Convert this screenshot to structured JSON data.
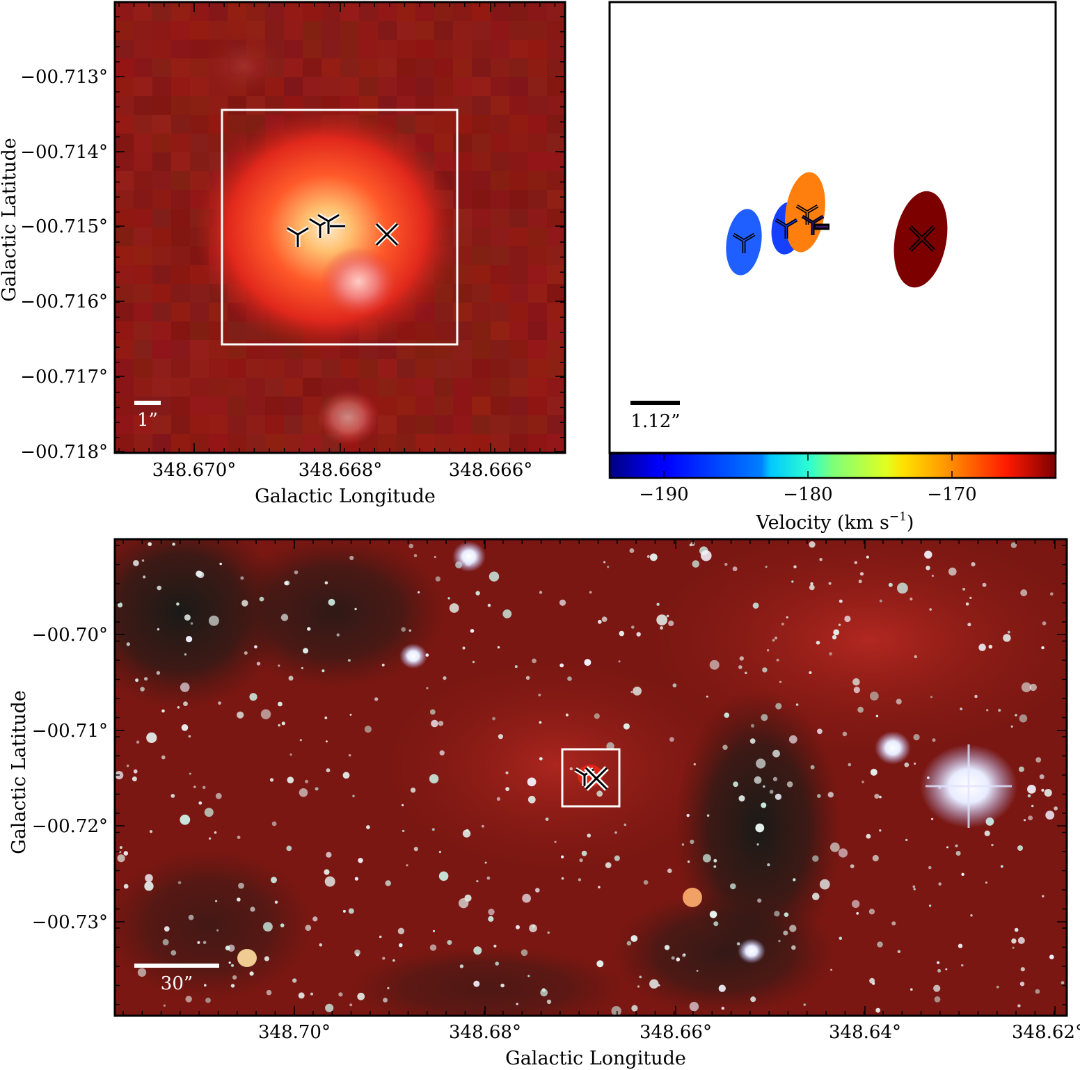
{
  "top_left_panel": {
    "y_title": "Galactic Latitude",
    "x_title": "Galactic Longitude",
    "y_ticks": [
      "−00.713°",
      "−00.714°",
      "−00.715°",
      "−00.716°",
      "−00.717°",
      "−00.718°"
    ],
    "x_ticks": [
      "348.670°",
      "348.668°",
      "348.666°"
    ],
    "scale_bar_label": "1”",
    "colors": {
      "background": "#8a1a14",
      "box": "#ffffff",
      "core": "#ffe0b0"
    }
  },
  "top_right_panel": {
    "scale_bar_label": "1.12”",
    "colorbar": {
      "title": "Velocity (km s",
      "title_exponent": "−1",
      "title_close": ")",
      "ticks": [
        "−190",
        "−180",
        "−170"
      ],
      "range": [
        -193.5,
        -162.5
      ],
      "colormap": "jet"
    },
    "spots": [
      {
        "velocity": -185,
        "color": "#1f5fff",
        "marker": "tri"
      },
      {
        "velocity": -187,
        "color": "#1540ff",
        "marker": "tri"
      },
      {
        "velocity": -172,
        "color": "#ff7f0e",
        "marker": "tri"
      },
      {
        "velocity": -166,
        "color": "#7d0000",
        "marker": "x"
      }
    ]
  },
  "bottom_panel": {
    "y_title": "Galactic Latitude",
    "x_title": "Galactic Longitude",
    "y_ticks": [
      "−00.70°",
      "−00.71°",
      "−00.72°",
      "−00.73°"
    ],
    "x_ticks": [
      "348.70°",
      "348.68°",
      "348.66°",
      "348.64°",
      "348.62°"
    ],
    "scale_bar_label": "30”",
    "colors": {
      "background": "#6e1410",
      "stars": "#e8f4f0"
    }
  }
}
